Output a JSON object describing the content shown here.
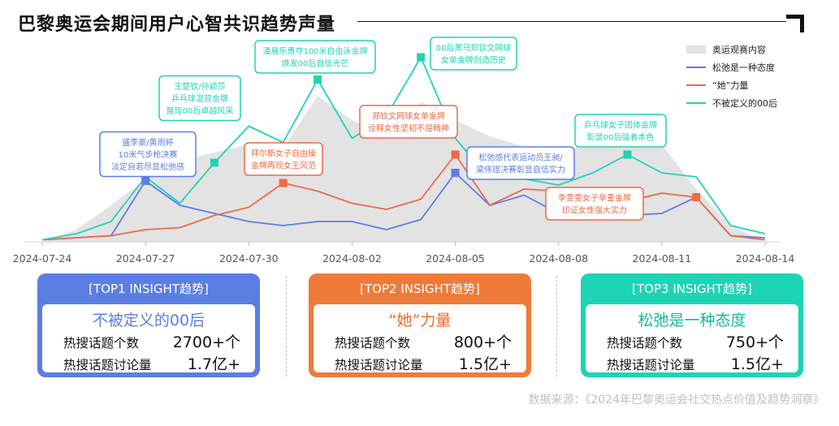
{
  "title": "巴黎奥运会期间用户心智共识趋势声量",
  "chart_data": {
    "type": "line",
    "x": [
      "2024-07-24",
      "2024-07-25",
      "2024-07-26",
      "2024-07-27",
      "2024-07-28",
      "2024-07-29",
      "2024-07-30",
      "2024-07-31",
      "2024-08-01",
      "2024-08-02",
      "2024-08-03",
      "2024-08-04",
      "2024-08-05",
      "2024-08-06",
      "2024-08-07",
      "2024-08-08",
      "2024-08-09",
      "2024-08-10",
      "2024-08-11",
      "2024-08-12",
      "2024-08-13",
      "2024-08-14"
    ],
    "x_ticks": [
      "2024-07-24",
      "2024-07-27",
      "2024-07-30",
      "2024-08-02",
      "2024-08-05",
      "2024-08-08",
      "2024-08-11",
      "2024-08-14"
    ],
    "ylim": [
      0,
      100
    ],
    "grid": false,
    "legend_position": "top-right",
    "series": [
      {
        "name": "奥运观赛内容",
        "kind": "area",
        "color": "#e3e3e3",
        "values": [
          0,
          6,
          18,
          31,
          40,
          44,
          48,
          46,
          72,
          60,
          52,
          69,
          60,
          52,
          47,
          40,
          53,
          57,
          48,
          26,
          8,
          0
        ]
      },
      {
        "name": "松弛是一种态度",
        "kind": "line",
        "color": "#5b7ee5",
        "values": [
          1,
          2,
          3,
          30,
          18,
          14,
          10,
          8,
          10,
          10,
          6,
          11,
          34,
          18,
          23,
          14,
          18,
          13,
          14,
          22,
          3,
          2
        ]
      },
      {
        "name": "“她”力量",
        "kind": "line",
        "color": "#ee6a45",
        "values": [
          1,
          2,
          3,
          6,
          7,
          13,
          17,
          29,
          25,
          19,
          16,
          21,
          43,
          18,
          26,
          25,
          18,
          20,
          24,
          22,
          3,
          1
        ]
      },
      {
        "name": "不被定义的00后",
        "kind": "line",
        "color": "#22d2b7",
        "values": [
          1,
          4,
          10,
          32,
          19,
          39,
          57,
          49,
          80,
          51,
          62,
          91,
          51,
          31,
          31,
          28,
          34,
          43,
          34,
          32,
          8,
          4
        ]
      }
    ],
    "markers": [
      {
        "series": "松弛是一种态度",
        "x": "2024-07-27"
      },
      {
        "series": "松弛是一种态度",
        "x": "2024-08-05"
      },
      {
        "series": "“她”力量",
        "x": "2024-07-31"
      },
      {
        "series": "“她”力量",
        "x": "2024-08-05"
      },
      {
        "series": "“她”力量",
        "x": "2024-08-12"
      },
      {
        "series": "不被定义的00后",
        "x": "2024-07-29"
      },
      {
        "series": "不被定义的00后",
        "x": "2024-08-01"
      },
      {
        "series": "不被定义的00后",
        "x": "2024-08-04"
      },
      {
        "series": "不被定义的00后",
        "x": "2024-08-10"
      }
    ],
    "annotations": [
      {
        "series": "松弛是一种态度",
        "lines": [
          "盛李豪/黄雨婷",
          "10米气步枪决赛",
          "淡定自若尽显松弛感"
        ]
      },
      {
        "series": "不被定义的00后",
        "lines": [
          "王楚钦/孙颖莎",
          "乒乓球混双金牌",
          "展现00后卓越风采"
        ]
      },
      {
        "series": "不被定义的00后",
        "lines": [
          "潘展乐勇夺100米自由泳金牌",
          "焕发00后自信光芒"
        ]
      },
      {
        "series": "“她”力量",
        "lines": [
          "拜尔斯女子自由操",
          "金牌再现女王风范"
        ]
      },
      {
        "series": "不被定义的00后",
        "lines": [
          "00后黑马郑钦文网球",
          "女单金牌创造历史"
        ]
      },
      {
        "series": "“她”力量",
        "lines": [
          "郑钦文网球女单金牌",
          "诠释女性坚韧不屈精神"
        ]
      },
      {
        "series": "松弛是一种态度",
        "lines": [
          "松弛感代表运动员王昶/",
          "梁伟铿决赛彰显自信实力"
        ]
      },
      {
        "series": "不被定义的00后",
        "lines": [
          "乒乓球女子团体金牌",
          "彰显00后强者本色"
        ]
      },
      {
        "series": "“她”力量",
        "lines": [
          "李雯雯女子举重金牌",
          "印证女性强大实力"
        ]
      }
    ]
  },
  "cards": [
    {
      "header": "[TOP1 INSIGHT趋势]",
      "insight": "不被定义的00后",
      "color": "#5b7ee5",
      "row1_label": "热搜话题个数",
      "row1_value": "2700+个",
      "row2_label": "热搜话题讨论量",
      "row2_value": "1.7亿+"
    },
    {
      "header": "[TOP2 INSIGHT趋势]",
      "insight": "“她”力量",
      "color": "#ee7a3a",
      "row1_label": "热搜话题个数",
      "row1_value": "800+个",
      "row2_label": "热搜话题讨论量",
      "row2_value": "1.5亿+"
    },
    {
      "header": "[TOP3 INSIGHT趋势]",
      "insight": "松弛是一种态度",
      "color": "#1dd4b4",
      "row1_label": "热搜话题个数",
      "row1_value": "750+个",
      "row2_label": "热搜话题讨论量",
      "row2_value": "1.5亿+"
    }
  ],
  "source": "数据来源：《2024年巴黎奥运会社交热点价值及趋势洞察》"
}
